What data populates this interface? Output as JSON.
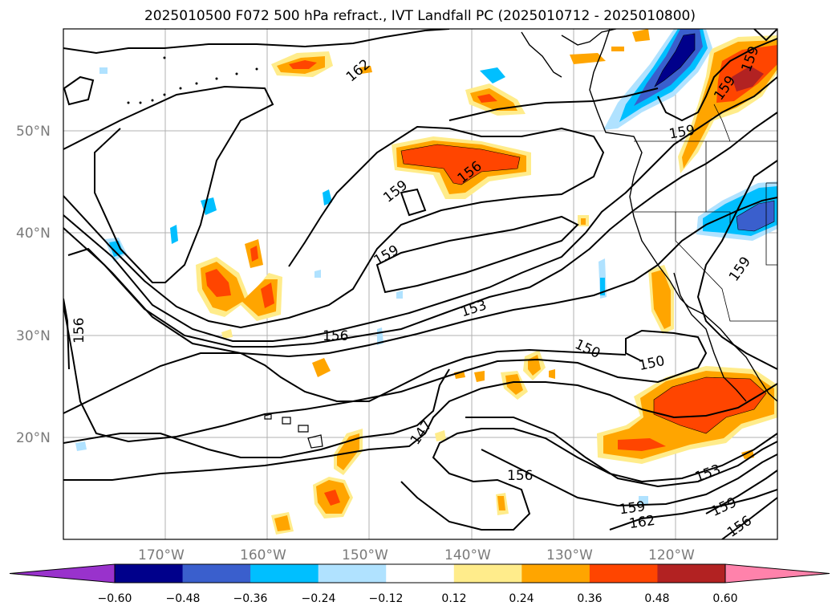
{
  "title": "2025010500 F072 500 hPa refract., IVT Landfall PC (2025010712 - 2025010800)",
  "map": {
    "projection": "PlateCarree",
    "extent": {
      "lon_min": -180,
      "lon_max": -110,
      "lat_min": 10,
      "lat_max": 60
    },
    "lat_labels": [
      "50°N",
      "40°N",
      "30°N",
      "20°N"
    ],
    "lon_labels": [
      "170°W",
      "160°W",
      "150°W",
      "140°W",
      "130°W",
      "120°W"
    ],
    "gridlines": true,
    "contour_labels": [
      "162",
      "159",
      "156",
      "159",
      "159",
      "159",
      "153",
      "156",
      "156",
      "150",
      "150",
      "147",
      "156",
      "159",
      "162",
      "153",
      "159",
      "156",
      "159",
      "159"
    ]
  },
  "colorbar": {
    "ticks": [
      "−0.60",
      "−0.48",
      "−0.36",
      "−0.24",
      "−0.12",
      "0.12",
      "0.24",
      "0.36",
      "0.48",
      "0.60"
    ],
    "colors": [
      "#9932cc",
      "#00008b",
      "#3a5fcd",
      "#00bfff",
      "#b0e2ff",
      "#ffffff",
      "#ffec8b",
      "#ffa500",
      "#ff4500",
      "#b22222",
      "#ff82ab"
    ],
    "extend": "both"
  },
  "chart_data": {
    "type": "heatmap",
    "title": "2025010500 F072 500 hPa refract., IVT Landfall PC (2025010712 - 2025010800)",
    "xlabel": "",
    "ylabel": "",
    "xlim": [
      -180,
      -110
    ],
    "ylim": [
      10,
      60
    ],
    "levels": [
      -0.6,
      -0.48,
      -0.36,
      -0.24,
      -0.12,
      0.12,
      0.24,
      0.36,
      0.48,
      0.6
    ],
    "contour_values": [
      147,
      150,
      153,
      156,
      159,
      162
    ],
    "grid": true
  }
}
